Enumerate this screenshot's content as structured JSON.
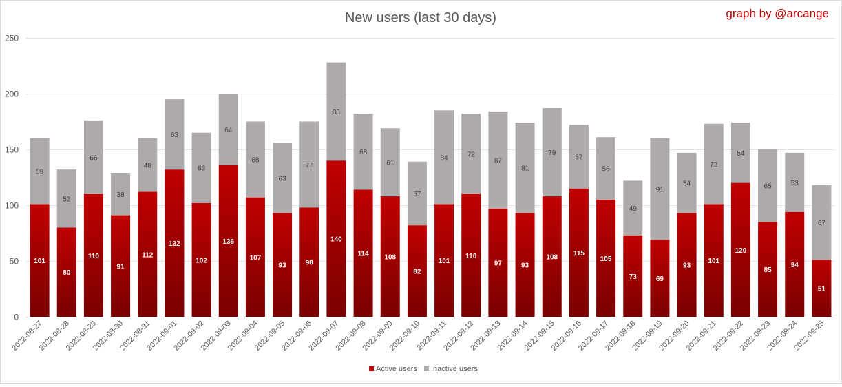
{
  "chart_data": {
    "type": "bar",
    "stacked": true,
    "title": "New users (last 30 days)",
    "credit": "graph by @arcange",
    "categories": [
      "2022-08-27",
      "2022-08-28",
      "2022-08-29",
      "2022-08-30",
      "2022-08-31",
      "2022-09-01",
      "2022-09-02",
      "2022-09-03",
      "2022-09-04",
      "2022-09-05",
      "2022-09-06",
      "2022-09-07",
      "2022-09-08",
      "2022-09-09",
      "2022-09-10",
      "2022-09-11",
      "2022-09-12",
      "2022-09-13",
      "2022-09-14",
      "2022-09-15",
      "2022-09-16",
      "2022-09-17",
      "2022-09-18",
      "2022-09-19",
      "2022-09-20",
      "2022-09-21",
      "2022-09-22",
      "2022-09-23",
      "2022-09-24",
      "2022-09-25"
    ],
    "series": [
      {
        "name": "Active users",
        "color": "#c00000",
        "values": [
          101,
          80,
          110,
          91,
          112,
          132,
          102,
          136,
          107,
          93,
          98,
          140,
          114,
          108,
          82,
          101,
          110,
          97,
          93,
          108,
          115,
          105,
          73,
          69,
          93,
          101,
          120,
          85,
          94,
          51
        ]
      },
      {
        "name": "Inactive users",
        "color": "#aeaaaa",
        "values": [
          59,
          52,
          66,
          38,
          48,
          63,
          63,
          64,
          68,
          63,
          77,
          88,
          68,
          61,
          57,
          84,
          72,
          87,
          81,
          79,
          57,
          56,
          49,
          91,
          54,
          72,
          54,
          65,
          53,
          67
        ]
      }
    ],
    "ylim": [
      0,
      250
    ],
    "yticks": [
      0,
      50,
      100,
      150,
      200,
      250
    ],
    "xlabel": "",
    "ylabel": "",
    "grid": true,
    "legend": "bottom"
  }
}
